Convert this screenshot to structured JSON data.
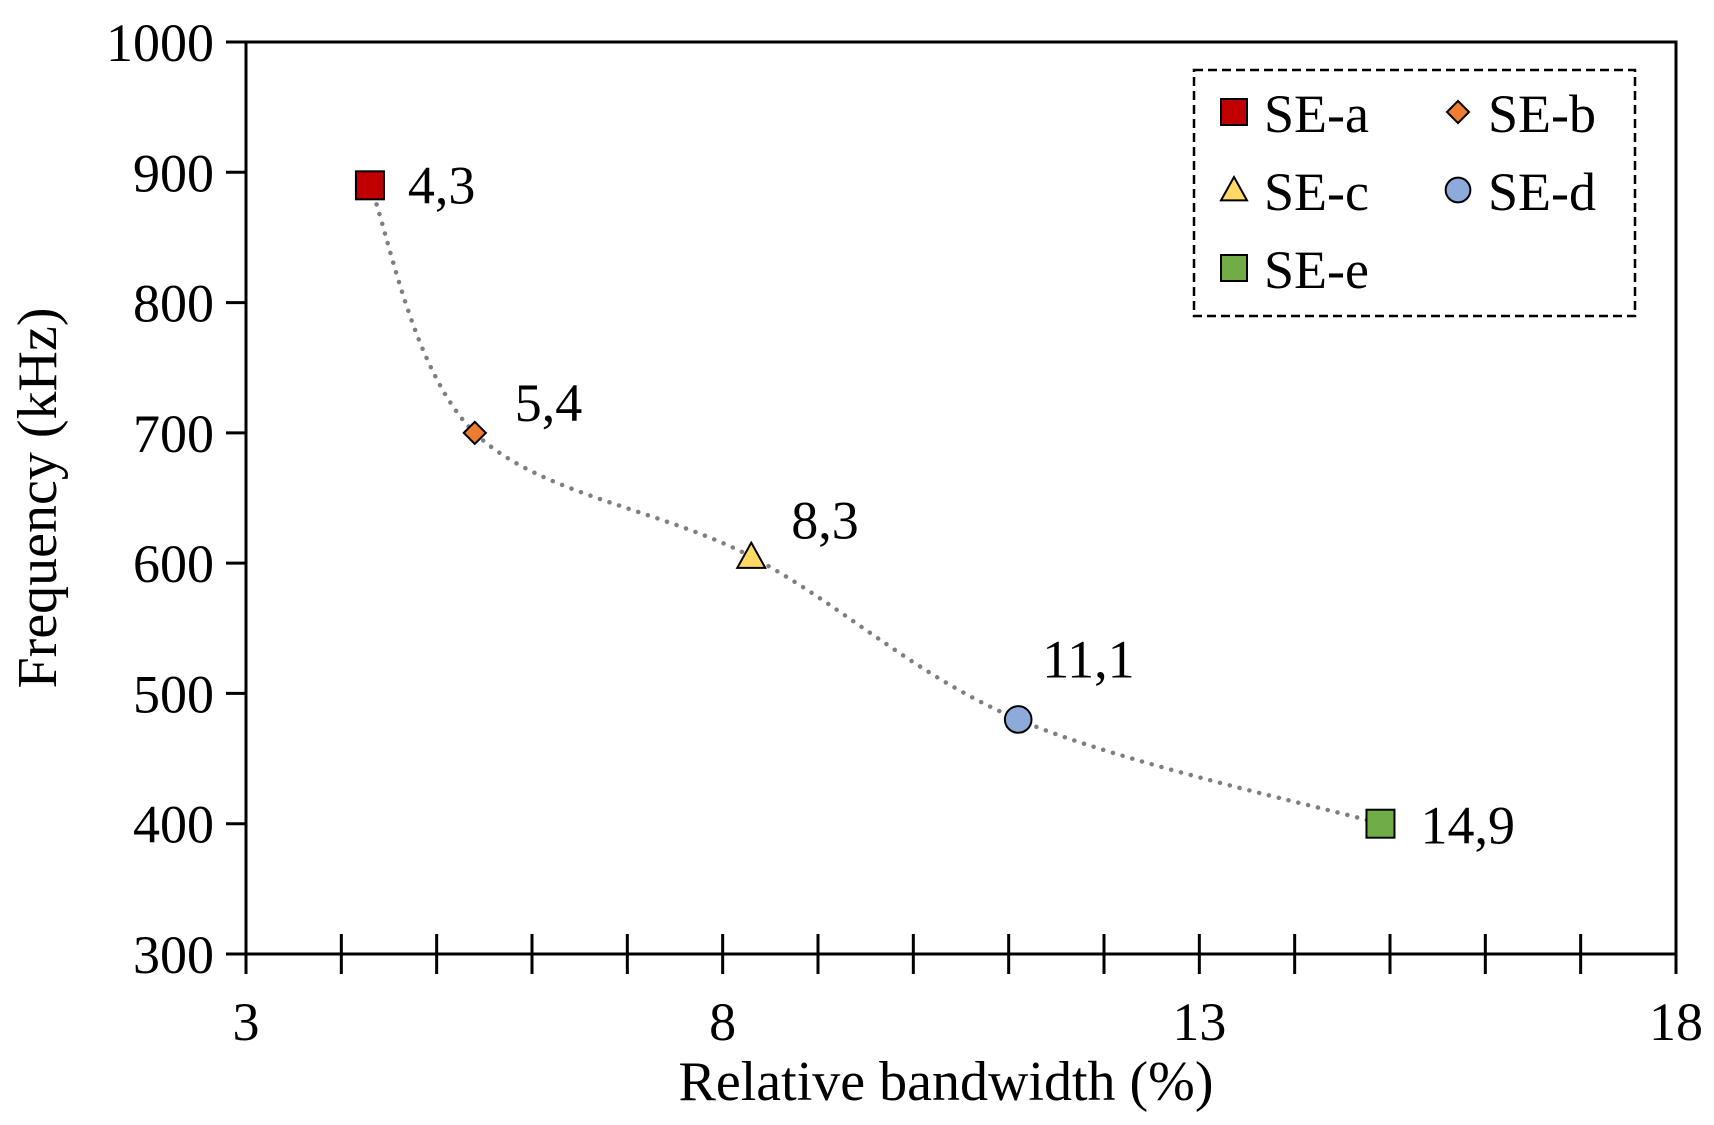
{
  "chart_data": {
    "type": "scatter",
    "title": "",
    "xlabel": "Relative bandwidth (%)",
    "ylabel": "Frequency (kHz)",
    "xlim": [
      3,
      18
    ],
    "ylim": [
      300,
      1000
    ],
    "x_major_ticks": [
      3,
      8,
      13,
      18
    ],
    "x_minor_step": 1,
    "y_ticks": [
      300,
      400,
      500,
      600,
      700,
      800,
      900,
      1000
    ],
    "grid": false,
    "legend_position": "top-right",
    "trendline": {
      "style": "dotted",
      "color": "#7f7f7f",
      "smooth": true
    },
    "series": [
      {
        "name": "SE-a",
        "x": 4.3,
        "y": 890,
        "label": "4,3",
        "marker": "square",
        "color": "#c00000"
      },
      {
        "name": "SE-b",
        "x": 5.4,
        "y": 700,
        "label": "5,4",
        "marker": "diamond",
        "color": "#ed7d31"
      },
      {
        "name": "SE-c",
        "x": 8.3,
        "y": 605,
        "label": "8,3",
        "marker": "triangle",
        "color": "#ffd966"
      },
      {
        "name": "SE-d",
        "x": 11.1,
        "y": 480,
        "label": "11,1",
        "marker": "circle",
        "color": "#8eaadb"
      },
      {
        "name": "SE-e",
        "x": 14.9,
        "y": 400,
        "label": "14,9",
        "marker": "square",
        "color": "#70ad47"
      }
    ]
  }
}
